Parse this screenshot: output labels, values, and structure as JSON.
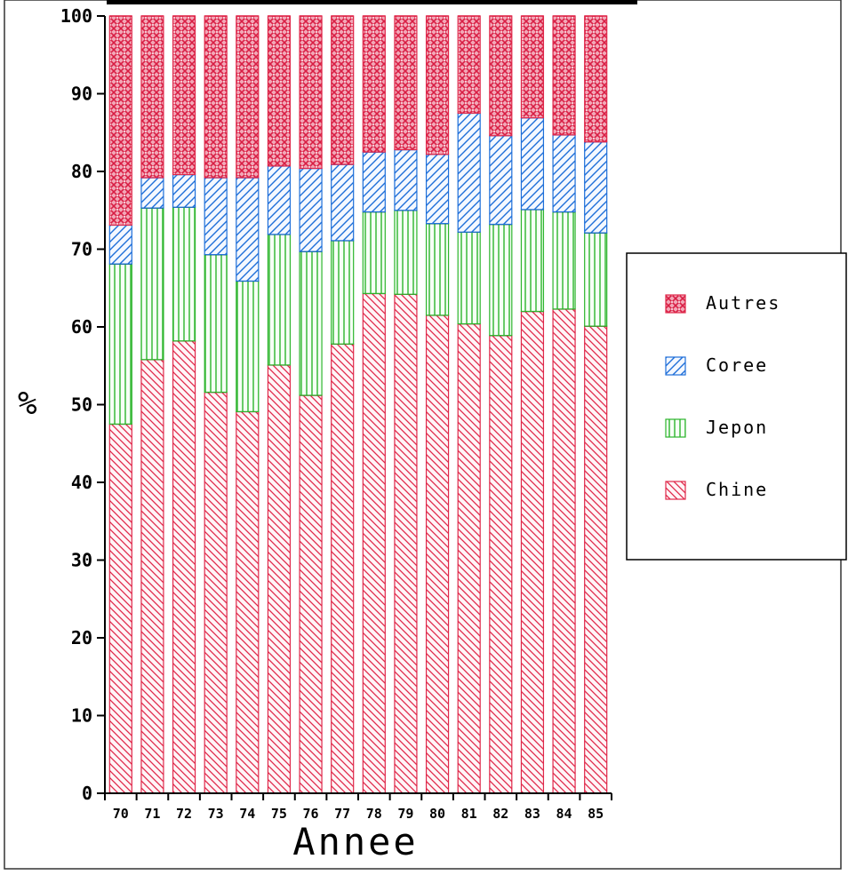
{
  "chart_data": {
    "type": "bar",
    "stacked": true,
    "percent_stacked": true,
    "categories": [
      "70",
      "71",
      "72",
      "73",
      "74",
      "75",
      "76",
      "77",
      "78",
      "79",
      "80",
      "81",
      "82",
      "83",
      "84",
      "85"
    ],
    "series": [
      {
        "name": "Chine",
        "color": "#e0284a",
        "pattern": "diagonal-backslash",
        "values": [
          47.5,
          55.8,
          58.2,
          51.6,
          49.1,
          55.1,
          51.2,
          57.8,
          64.3,
          64.2,
          61.5,
          60.4,
          58.9,
          62.0,
          62.3,
          60.1
        ]
      },
      {
        "name": "Jepon",
        "color": "#2db52d",
        "pattern": "vertical-lines",
        "values": [
          20.6,
          19.5,
          17.2,
          17.7,
          16.8,
          16.8,
          18.5,
          13.3,
          10.5,
          10.8,
          11.8,
          11.8,
          14.3,
          13.1,
          12.5,
          12.0
        ]
      },
      {
        "name": "Coree",
        "color": "#1e6fd9",
        "pattern": "diagonal-slash",
        "values": [
          5.0,
          3.9,
          4.2,
          9.9,
          13.3,
          8.8,
          10.7,
          9.8,
          7.7,
          7.8,
          8.9,
          15.3,
          11.4,
          11.8,
          9.9,
          11.7
        ]
      },
      {
        "name": "Autres",
        "color": "#e0284a",
        "pattern": "crosshatch",
        "values": [
          26.9,
          20.8,
          20.4,
          20.8,
          20.8,
          19.3,
          19.6,
          19.1,
          17.5,
          17.2,
          17.8,
          12.5,
          15.4,
          13.1,
          15.3,
          16.2
        ]
      }
    ],
    "xlabel": "Annee",
    "ylabel": "%",
    "ylim": [
      0,
      100
    ],
    "yticks": [
      "0",
      "10",
      "20",
      "30",
      "40",
      "50",
      "60",
      "70",
      "80",
      "90",
      "100"
    ],
    "legend_order": [
      "Autres",
      "Coree",
      "Jepon",
      "Chine"
    ],
    "legend_position": "right",
    "grid": false
  }
}
